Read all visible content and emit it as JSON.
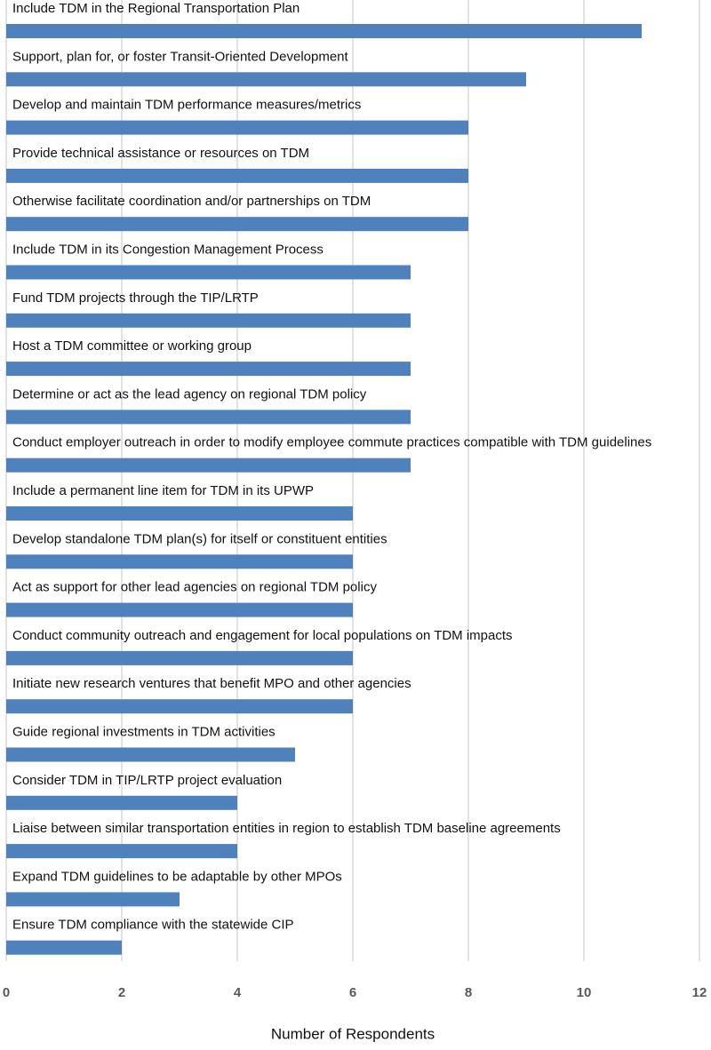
{
  "chart_data": {
    "type": "bar",
    "orientation": "horizontal",
    "x_label": "Number of Respondents",
    "categories": [
      "Include TDM in the Regional Transportation Plan",
      "Support, plan for, or foster Transit-Oriented Development",
      "Develop and maintain TDM performance measures/metrics",
      "Provide technical assistance or resources on TDM",
      "Otherwise facilitate coordination and/or partnerships on TDM",
      "Include TDM in its Congestion Management Process",
      "Fund TDM projects through the TIP/LRTP",
      "Host a TDM committee or working group",
      "Determine or act as the lead agency on regional TDM policy",
      "Conduct employer outreach in order to modify employee commute practices compatible with TDM guidelines",
      "Include a permanent line item for TDM in its UPWP",
      "Develop standalone TDM plan(s) for itself or constituent entities",
      "Act as support for other lead agencies on regional TDM policy",
      "Conduct community outreach and engagement for local populations on TDM impacts",
      "Initiate new research ventures that benefit MPO and other agencies",
      "Guide regional investments in TDM activities",
      "Consider TDM in TIP/LRTP project evaluation",
      "Liaise between similar transportation entities in region to establish TDM baseline agreements",
      "Expand TDM guidelines to be adaptable by other MPOs",
      "Ensure TDM compliance with the statewide CIP"
    ],
    "values": [
      11,
      9,
      8,
      8,
      8,
      7,
      7,
      7,
      7,
      7,
      6,
      6,
      6,
      6,
      6,
      5,
      4,
      4,
      3,
      2
    ],
    "color": "#4f81bd",
    "xlim": [
      0,
      12
    ],
    "xticks": [
      0,
      2,
      4,
      6,
      8,
      10,
      12
    ],
    "grid": true
  }
}
